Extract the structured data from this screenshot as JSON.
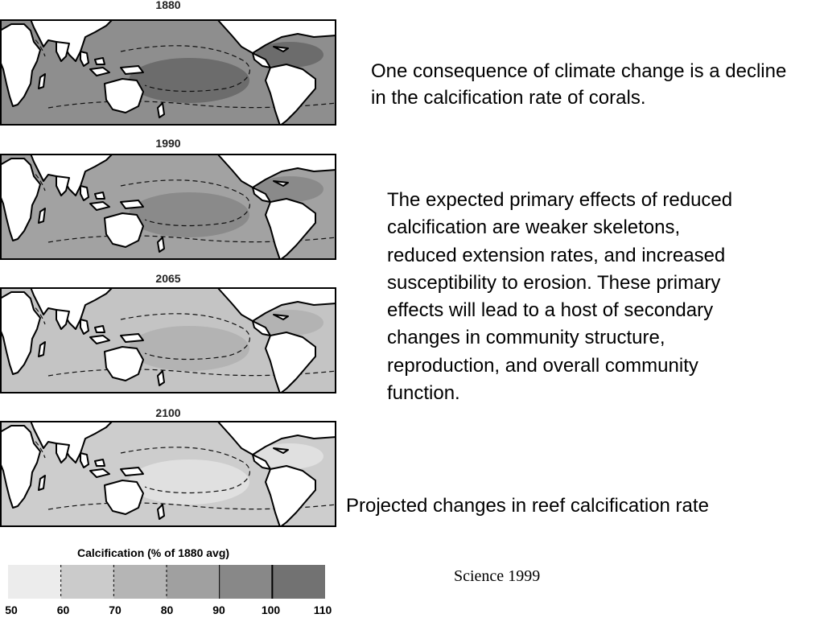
{
  "maps": [
    {
      "year": "1880",
      "ocean": "#8e8e8e",
      "inner": "#6c6c6c"
    },
    {
      "year": "1990",
      "ocean": "#a2a2a2",
      "inner": "#8a8a8a"
    },
    {
      "year": "2065",
      "ocean": "#c4c4c4",
      "inner": "#b3b3b3"
    },
    {
      "year": "2100",
      "ocean": "#cdcdcd",
      "inner": "#e0e0e0"
    }
  ],
  "legend": {
    "title": "Calcification (% of 1880 avg)",
    "ticks": [
      "50",
      "60",
      "70",
      "80",
      "90",
      "100",
      "110"
    ],
    "colors": [
      "#ececec",
      "#cbcbcb",
      "#b5b5b5",
      "#a0a0a0",
      "#888888",
      "#727272"
    ]
  },
  "text": {
    "intro": "One consequence of climate change is a decline in the calcification rate of corals.",
    "effects": "The expected primary effects of reduced calcification are weaker skeletons, reduced extension rates, and increased susceptibility to erosion. These primary effects will lead to a host of secondary changes in community structure, reproduction, and overall community function.",
    "caption": "Projected changes in reef calcification rate",
    "citation": "Science 1999"
  }
}
